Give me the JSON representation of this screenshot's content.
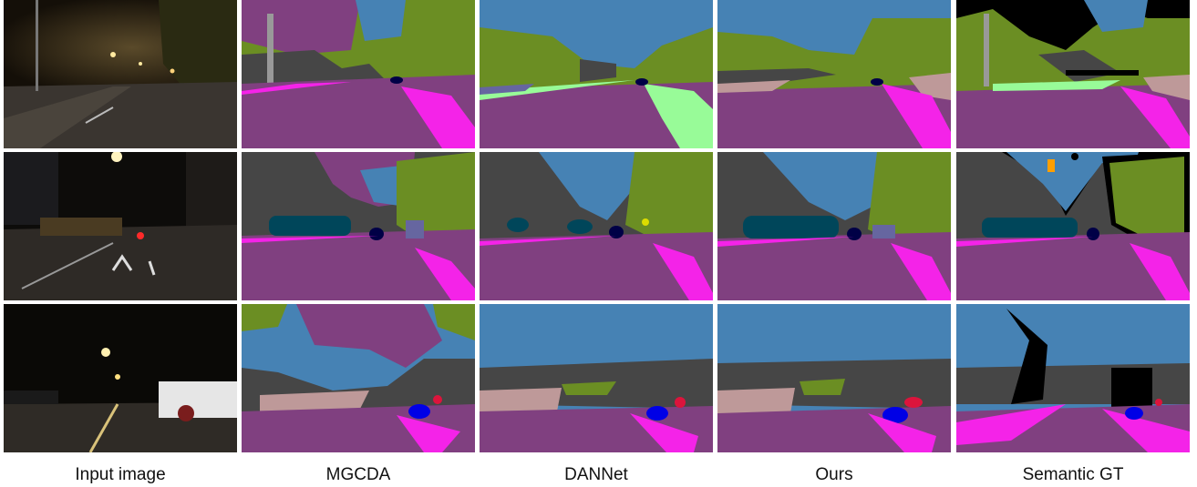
{
  "columns": [
    "Input image",
    "MGCDA",
    "DANNet",
    "Ours",
    "Semantic GT"
  ],
  "palette": {
    "sky": "#4682B4",
    "vegetation": "#6B8E23",
    "building": "#464646",
    "road": "#804080",
    "sidewalk": "#F423E8",
    "terrain": "#98FB98",
    "wall": "#BE9999",
    "pole": "#999999",
    "car": "#00465A",
    "truck": "#000046",
    "person": "#DC143C",
    "motorcycle": "#0000E6",
    "traffic_sign": "#DCDC00",
    "fence": "#6666A0",
    "ignore": "#000000"
  }
}
